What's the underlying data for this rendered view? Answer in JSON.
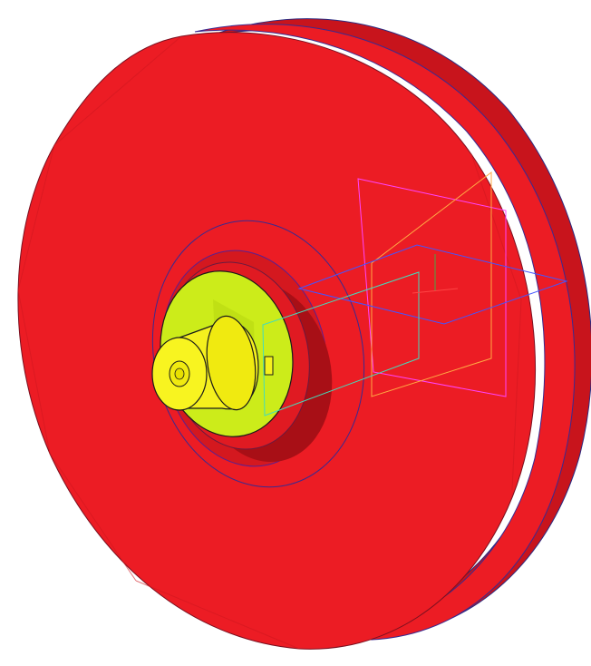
{
  "viewport": {
    "background": "#ffffff"
  },
  "model": {
    "wheel_color": "#ec1c24",
    "wheel_shadow_color": "#c8141c",
    "wheel_edge_color": "#b01018",
    "outline_color": "#1a1a1a",
    "hub_color": "#ccec1a",
    "shaft_color": "#f5f01e",
    "shaft_shadow_color": "#d9d400",
    "plane_colors": [
      "#4455ff",
      "#ff44ff",
      "#ffaa44",
      "#44ddbb"
    ]
  }
}
